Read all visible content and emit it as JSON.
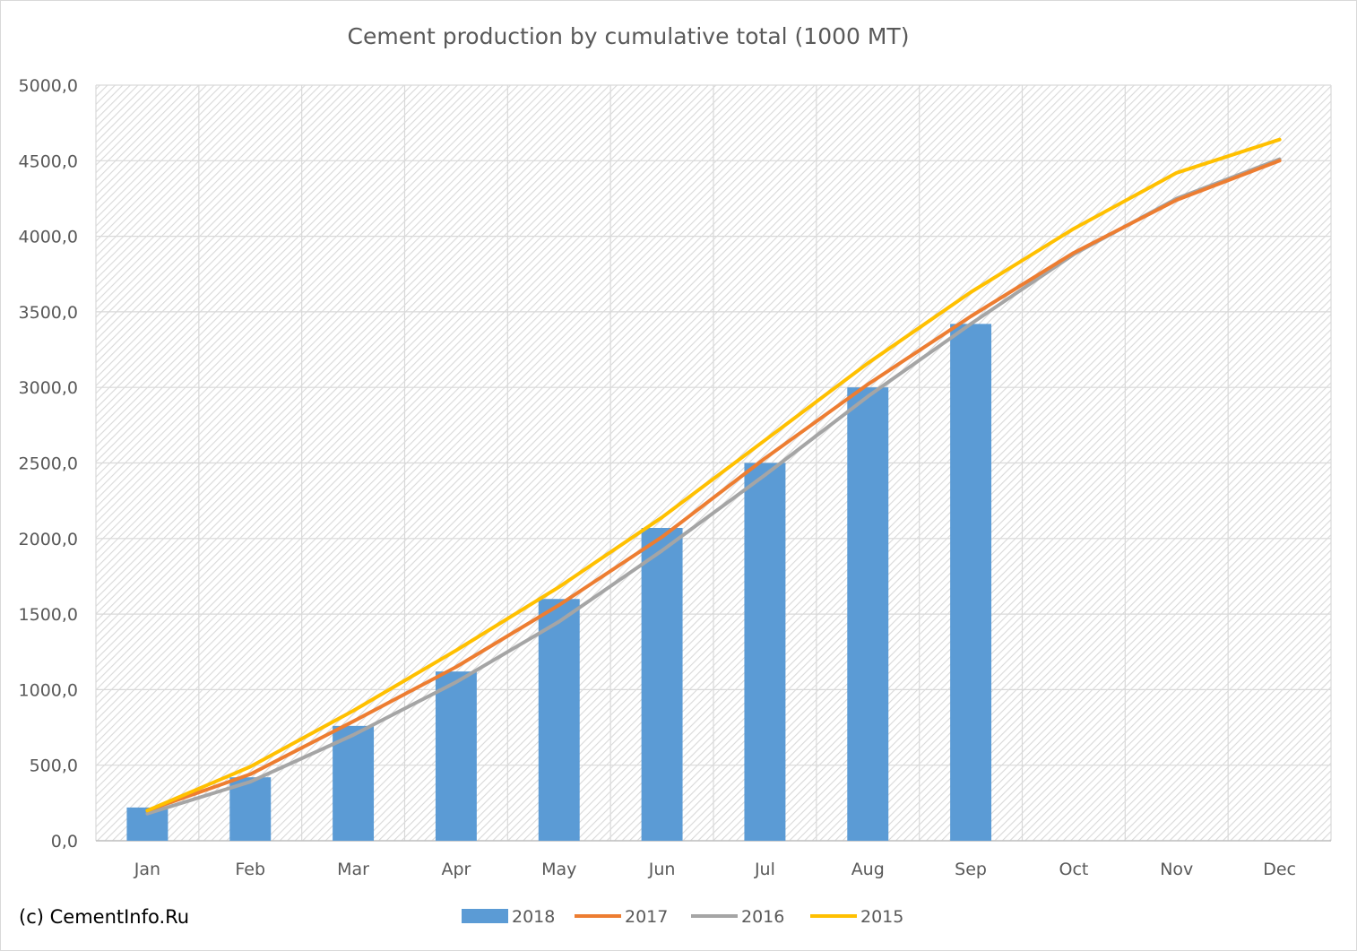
{
  "chart_data": {
    "type": "bar",
    "title": "Cement production by cumulative total (1000 MT)",
    "xlabel": "",
    "ylabel": "",
    "categories": [
      "Jan",
      "Feb",
      "Mar",
      "Apr",
      "May",
      "Jun",
      "Jul",
      "Aug",
      "Sep",
      "Oct",
      "Nov",
      "Dec"
    ],
    "ylim": [
      0,
      5000
    ],
    "yticks": [
      0,
      500,
      1000,
      1500,
      2000,
      2500,
      3000,
      3500,
      4000,
      4500,
      5000
    ],
    "ytick_labels": [
      "0,0",
      "500,0",
      "1000,0",
      "1500,0",
      "2000,0",
      "2500,0",
      "3000,0",
      "3500,0",
      "4000,0",
      "4500,0",
      "5000,0"
    ],
    "grid": true,
    "legend_position": "bottom",
    "series": [
      {
        "name": "2018",
        "type": "bar",
        "color": "#5b9bd5",
        "values": [
          220,
          420,
          760,
          1120,
          1600,
          2070,
          2500,
          3000,
          3420,
          null,
          null,
          null
        ]
      },
      {
        "name": "2017",
        "type": "line",
        "color": "#ed7d31",
        "values": [
          200,
          440,
          790,
          1150,
          1560,
          2010,
          2530,
          3020,
          3470,
          3890,
          4240,
          4500
        ]
      },
      {
        "name": "2016",
        "type": "line",
        "color": "#a5a5a5",
        "values": [
          180,
          390,
          700,
          1050,
          1450,
          1920,
          2420,
          2940,
          3420,
          3880,
          4250,
          4510
        ]
      },
      {
        "name": "2015",
        "type": "line",
        "color": "#ffc000",
        "values": [
          200,
          490,
          860,
          1260,
          1680,
          2140,
          2650,
          3160,
          3630,
          4050,
          4420,
          4640
        ]
      }
    ]
  },
  "footer": {
    "copyright": "(c) CementInfo.Ru"
  }
}
